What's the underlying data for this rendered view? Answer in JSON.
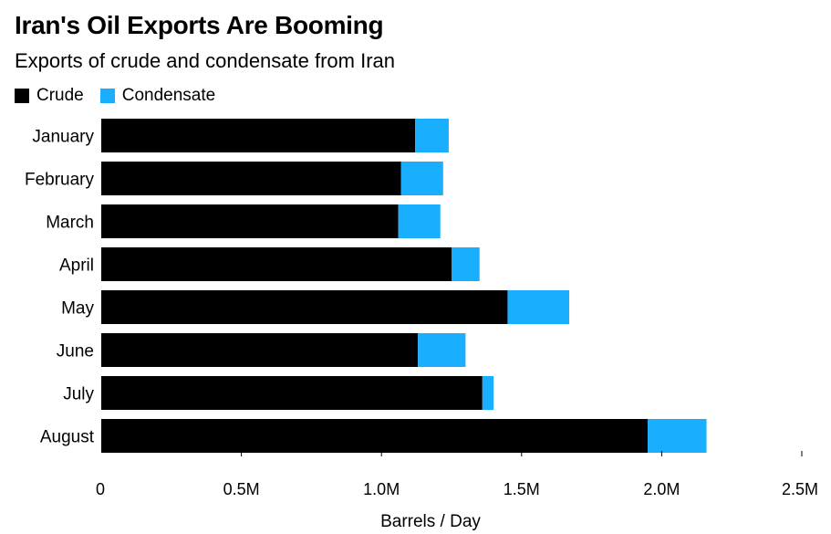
{
  "chart_data": {
    "type": "bar",
    "orientation": "horizontal",
    "stacked": true,
    "title": "Iran's Oil Exports Are Booming",
    "subtitle": "Exports of crude and condensate from Iran",
    "categories": [
      "January",
      "February",
      "March",
      "April",
      "May",
      "June",
      "July",
      "August"
    ],
    "series": [
      {
        "name": "Crude",
        "color": "#000000",
        "values": [
          1.12,
          1.07,
          1.06,
          1.25,
          1.45,
          1.13,
          1.36,
          1.95
        ]
      },
      {
        "name": "Condensate",
        "color": "#1aaeff",
        "values": [
          0.12,
          0.15,
          0.15,
          0.1,
          0.22,
          0.17,
          0.04,
          0.21
        ]
      }
    ],
    "xlim": [
      0,
      2.5
    ],
    "xticks": [
      0,
      0.5,
      1.0,
      1.5,
      2.0,
      2.5
    ],
    "xtick_labels": [
      "0",
      "0.5M",
      "1.0M",
      "1.5M",
      "2.0M",
      "2.5M"
    ],
    "xlabel": "Barrels / Day",
    "legend_position": "top-left"
  }
}
